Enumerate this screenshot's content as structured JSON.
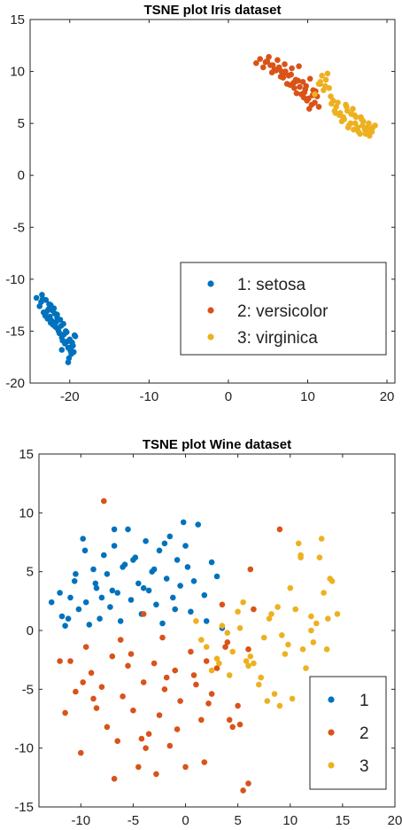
{
  "chart_data": [
    {
      "type": "scatter",
      "title": "TSNE plot Iris dataset",
      "xlabel": "",
      "ylabel": "",
      "xlim": [
        -25,
        21
      ],
      "ylim": [
        -20,
        15
      ],
      "xticks": [
        -20,
        -10,
        0,
        10,
        20
      ],
      "yticks": [
        15,
        10,
        5,
        0,
        -5,
        -10,
        -15,
        -20
      ],
      "xtick_labels": [
        "-20",
        "-10",
        "0",
        "10",
        "20"
      ],
      "ytick_labels": [
        "15",
        "10",
        "5",
        "0",
        "-5",
        "-10",
        "-15",
        "-20"
      ],
      "grid": false,
      "legend_position": "bottom-right",
      "series": [
        {
          "name": "1: setosa",
          "color": "#0072BD",
          "x": [
            -24.2,
            -23.8,
            -23.5,
            -23.3,
            -23.0,
            -22.8,
            -22.6,
            -22.4,
            -22.2,
            -22.0,
            -21.8,
            -21.6,
            -21.4,
            -21.2,
            -21.0,
            -20.8,
            -20.6,
            -20.4,
            -20.2,
            -20.0,
            -19.8,
            -19.6,
            -19.4,
            -23.6,
            -23.1,
            -22.7,
            -22.3,
            -21.9,
            -21.5,
            -21.1,
            -20.7,
            -20.3,
            -19.9,
            -19.5,
            -22.9,
            -22.5,
            -22.1,
            -21.7,
            -21.3,
            -20.9,
            -20.5,
            -20.1,
            -19.7,
            -19.3,
            -23.4,
            -21.0,
            -20.2,
            -19.8,
            -22.4,
            -21.6
          ],
          "y": [
            -11.8,
            -12.6,
            -11.5,
            -13.2,
            -12.0,
            -13.8,
            -12.4,
            -14.2,
            -13.0,
            -12.8,
            -14.6,
            -13.4,
            -15.0,
            -13.9,
            -15.6,
            -14.3,
            -16.2,
            -15.1,
            -16.6,
            -15.8,
            -17.2,
            -16.4,
            -15.4,
            -12.2,
            -13.5,
            -12.9,
            -14.0,
            -13.3,
            -14.8,
            -14.5,
            -15.3,
            -16.0,
            -16.9,
            -17.0,
            -13.1,
            -13.6,
            -14.4,
            -14.1,
            -15.2,
            -15.9,
            -15.0,
            -17.6,
            -16.1,
            -15.5,
            -11.9,
            -16.8,
            -18.0,
            -16.5,
            -12.5,
            -13.7
          ]
        },
        {
          "name": "2: versicolor",
          "color": "#D95319",
          "x": [
            3.5,
            4.0,
            4.4,
            4.9,
            5.3,
            5.8,
            6.2,
            6.7,
            7.1,
            7.6,
            8.0,
            8.5,
            8.9,
            9.4,
            9.8,
            10.3,
            10.7,
            11.2,
            4.7,
            5.5,
            6.0,
            6.9,
            7.4,
            7.9,
            8.3,
            8.8,
            9.2,
            9.6,
            10.1,
            10.5,
            5.1,
            6.4,
            7.2,
            8.2,
            9.0,
            9.9,
            10.9,
            11.4,
            6.6,
            7.8,
            8.6,
            9.5,
            10.2,
            11.0,
            5.6,
            7.0,
            8.4,
            9.7,
            10.6,
            11.5
          ],
          "y": [
            10.8,
            11.2,
            10.4,
            11.0,
            10.6,
            10.2,
            11.1,
            10.0,
            10.7,
            9.6,
            10.3,
            9.2,
            10.5,
            9.0,
            8.6,
            9.3,
            8.2,
            7.6,
            10.9,
            9.9,
            10.1,
            9.4,
            8.8,
            9.7,
            8.4,
            9.1,
            7.8,
            8.0,
            7.4,
            6.8,
            11.4,
            10.4,
            10.0,
            8.9,
            8.5,
            7.2,
            7.0,
            6.6,
            9.5,
            8.7,
            7.9,
            7.5,
            6.4,
            8.1,
            10.6,
            9.8,
            9.0,
            8.3,
            7.7,
            8.8
          ]
        },
        {
          "name": "3: virginica",
          "color": "#EDB120",
          "x": [
            10.9,
            11.4,
            11.8,
            12.3,
            12.7,
            13.2,
            13.6,
            14.1,
            14.5,
            15.0,
            15.4,
            15.9,
            16.3,
            16.8,
            17.2,
            17.7,
            18.1,
            18.5,
            12.0,
            12.9,
            13.4,
            14.3,
            14.8,
            15.2,
            15.7,
            16.1,
            16.6,
            17.0,
            17.5,
            17.9,
            11.6,
            12.5,
            13.8,
            14.6,
            15.5,
            16.4,
            17.3,
            18.2,
            13.0,
            14.0,
            15.1,
            16.0,
            16.9,
            17.8,
            12.2,
            13.5,
            14.9,
            15.8,
            16.7,
            17.6
          ],
          "y": [
            7.8,
            8.8,
            9.6,
            9.2,
            8.4,
            7.2,
            6.6,
            6.0,
            5.6,
            6.2,
            5.0,
            5.8,
            4.6,
            5.4,
            4.4,
            5.0,
            4.2,
            4.8,
            8.2,
            7.6,
            6.2,
            5.2,
            6.8,
            4.8,
            6.4,
            5.6,
            4.0,
            5.2,
            4.6,
            4.4,
            9.0,
            9.8,
            7.0,
            5.4,
            5.9,
            4.2,
            4.0,
            4.6,
            6.9,
            5.8,
            4.6,
            5.0,
            4.8,
            3.8,
            8.6,
            6.0,
            6.6,
            4.4,
            5.6,
            4.2
          ]
        }
      ]
    },
    {
      "type": "scatter",
      "title": "TSNE plot Wine dataset",
      "xlabel": "",
      "ylabel": "",
      "xlim": [
        -14,
        20
      ],
      "ylim": [
        -15,
        15
      ],
      "xticks": [
        -10,
        -5,
        0,
        5,
        10,
        15,
        20
      ],
      "yticks": [
        15,
        10,
        5,
        0,
        -5,
        -10,
        -15
      ],
      "xtick_labels": [
        "-10",
        "-5",
        "0",
        "5",
        "10",
        "15",
        "20"
      ],
      "ytick_labels": [
        "15",
        "10",
        "5",
        "0",
        "-5",
        "-10",
        "-15"
      ],
      "grid": false,
      "legend_position": "bottom-right",
      "series": [
        {
          "name": "1",
          "color": "#0072BD",
          "x": [
            -12.8,
            -12.0,
            -11.8,
            -11.5,
            -11.0,
            -10.6,
            -10.2,
            -9.8,
            -9.5,
            -9.2,
            -8.8,
            -8.5,
            -8.2,
            -7.8,
            -7.5,
            -7.2,
            -6.8,
            -6.5,
            -6.2,
            -5.8,
            -5.5,
            -5.2,
            -4.8,
            -4.5,
            -4.2,
            -3.8,
            -3.5,
            -3.2,
            -2.8,
            -2.5,
            -2.2,
            -1.8,
            -1.5,
            -1.2,
            -0.8,
            -0.5,
            -0.2,
            0.2,
            0.5,
            0.8,
            1.2,
            1.8,
            2.5,
            3.0,
            3.5,
            -9.6,
            -8.0,
            -6.0,
            -4.0,
            -2.0,
            0.0,
            -10.5,
            -7.0,
            -3.0,
            -1.0,
            -11.2,
            -5.0,
            2.0,
            -8.6,
            -6.8
          ],
          "y": [
            2.4,
            3.2,
            1.2,
            0.4,
            2.8,
            4.2,
            1.8,
            7.8,
            2.4,
            0.5,
            5.2,
            3.6,
            1.0,
            6.4,
            4.8,
            2.0,
            7.2,
            3.2,
            0.8,
            5.6,
            8.6,
            2.6,
            6.2,
            4.0,
            1.4,
            7.6,
            3.4,
            5.0,
            2.2,
            6.8,
            0.6,
            4.4,
            8.0,
            2.8,
            6.0,
            3.8,
            9.2,
            5.4,
            1.6,
            4.2,
            9.0,
            3.0,
            5.8,
            4.6,
            0.2,
            6.8,
            2.8,
            5.4,
            3.6,
            7.4,
            7.2,
            4.8,
            3.4,
            5.2,
            1.8,
            1.0,
            6.0,
            0.8,
            4.0,
            8.6
          ]
        },
        {
          "name": "2",
          "color": "#D95319",
          "x": [
            -12.0,
            -11.5,
            -10.5,
            -10.0,
            -9.5,
            -9.0,
            -8.5,
            -8.0,
            -7.5,
            -7.0,
            -6.5,
            -6.0,
            -5.5,
            -5.0,
            -4.5,
            -4.0,
            -3.5,
            -3.0,
            -2.5,
            -2.0,
            -1.5,
            -1.0,
            -0.5,
            0.0,
            0.5,
            1.0,
            1.5,
            2.0,
            2.5,
            3.0,
            3.5,
            4.0,
            4.5,
            5.0,
            5.5,
            6.0,
            6.5,
            -7.8,
            -9.8,
            -6.8,
            -5.2,
            -3.8,
            -2.2,
            -0.8,
            0.8,
            2.2,
            3.8,
            5.2,
            6.2,
            -11.0,
            -8.8,
            -6.2,
            -4.2,
            -1.8,
            1.8,
            4.2,
            6.0,
            9.0,
            -4.0,
            -2.8
          ],
          "y": [
            -2.6,
            -7.0,
            -5.2,
            -10.4,
            -1.4,
            -3.6,
            -6.6,
            -4.8,
            -8.2,
            -2.2,
            -9.4,
            -5.6,
            -3.0,
            -6.8,
            -11.6,
            -4.4,
            -8.8,
            -2.8,
            -7.2,
            -5.0,
            -9.8,
            -3.4,
            -6.0,
            -11.6,
            -1.8,
            -4.6,
            -7.6,
            -2.6,
            -5.4,
            -3.2,
            2.2,
            -1.0,
            -8.2,
            -6.4,
            -13.6,
            -13.0,
            1.8,
            11.0,
            -4.4,
            -12.6,
            -2.0,
            -10.0,
            -0.6,
            -8.4,
            -3.8,
            -6.2,
            -1.4,
            -8.0,
            5.2,
            -2.6,
            -5.8,
            -0.8,
            -9.2,
            -4.0,
            -11.2,
            -7.6,
            -1.6,
            8.6,
            1.4,
            -12.2
          ]
        },
        {
          "name": "3",
          "color": "#EDB120",
          "x": [
            1.0,
            2.0,
            3.0,
            4.0,
            5.0,
            6.0,
            7.0,
            8.0,
            9.0,
            10.0,
            11.0,
            12.0,
            13.0,
            14.0,
            14.5,
            1.5,
            2.5,
            3.5,
            4.5,
            5.5,
            6.5,
            7.5,
            8.5,
            9.5,
            10.5,
            11.5,
            12.5,
            13.5,
            4.2,
            6.2,
            8.2,
            10.2,
            12.2,
            14.2,
            3.2,
            5.2,
            7.2,
            9.2,
            11.2,
            13.2,
            8.8,
            10.8,
            12.8,
            11.0,
            12.0,
            13.8,
            13.6,
            7.8,
            9.8,
            5.8
          ],
          "y": [
            0.8,
            -1.4,
            -2.4,
            -0.2,
            1.6,
            -3.0,
            -4.6,
            1.0,
            -6.4,
            3.6,
            6.4,
            0.0,
            7.8,
            4.2,
            1.4,
            -0.8,
            -3.4,
            0.4,
            -1.8,
            2.4,
            -2.8,
            -0.6,
            -5.4,
            -2.0,
            1.8,
            -3.2,
            0.6,
            -1.6,
            -3.8,
            -2.2,
            1.4,
            -5.8,
            -1.0,
            -5.0,
            -2.8,
            0.2,
            -4.0,
            -0.4,
            -1.6,
            3.2,
            2.0,
            7.4,
            6.2,
            6.2,
            1.2,
            4.4,
            1.0,
            -6.0,
            -1.2,
            -2.6
          ]
        }
      ]
    }
  ]
}
